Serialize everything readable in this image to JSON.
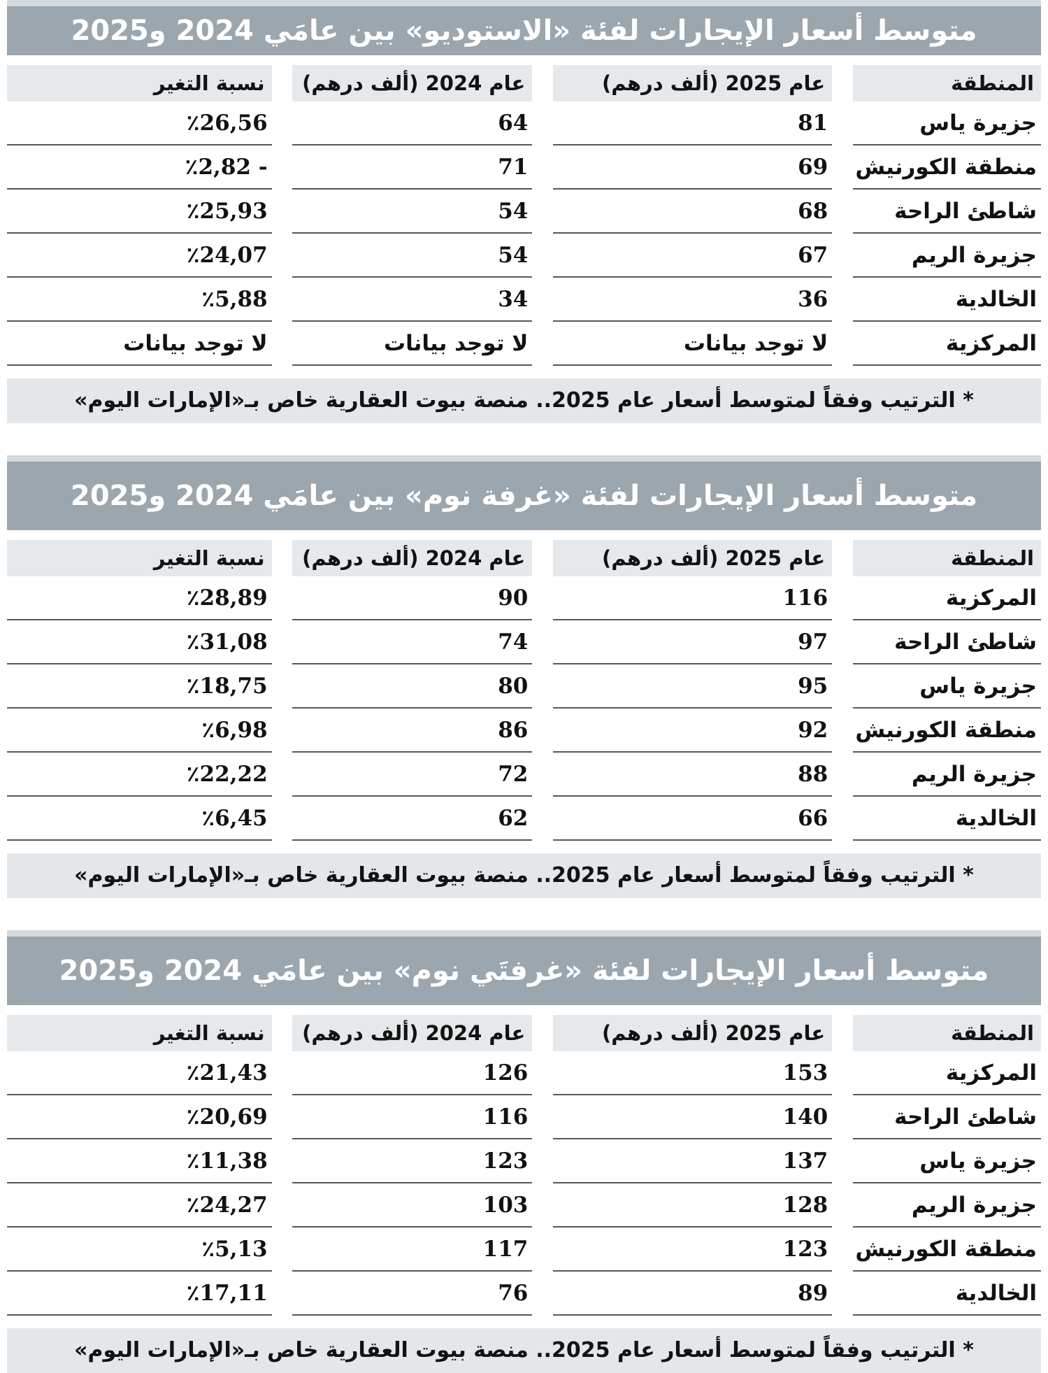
{
  "colors": {
    "title_bar": "#9ba6af",
    "title_strip": "#d3d9dd",
    "header_bg": "#e6e9eb",
    "footnote_bg": "#e3e7ea",
    "row_line": "#53585c",
    "text": "#121212",
    "title_text": "#ffffff"
  },
  "chart_data": [
    {
      "type": "table",
      "title": "متوسط أسعار الإيجارات لفئة «الاستوديو» بين عامَي 2024 و2025",
      "columns": [
        "المنطقة",
        "عام 2025 (ألف درهم)",
        "عام 2024 (ألف درهم)",
        "نسبة التغير"
      ],
      "unit": "ألف درهم",
      "rows": [
        {
          "region": "جزيرة ياس",
          "y2025": 81,
          "y2024": 64,
          "change_display": "٪26,56",
          "change_pct": 26.56
        },
        {
          "region": "منطقة الكورنيش",
          "y2025": 69,
          "y2024": 71,
          "change_display": "٪2,82 -",
          "change_pct": -2.82
        },
        {
          "region": "شاطئ الراحة",
          "y2025": 68,
          "y2024": 54,
          "change_display": "٪25,93",
          "change_pct": 25.93
        },
        {
          "region": "جزيرة الريم",
          "y2025": 67,
          "y2024": 54,
          "change_display": "٪24,07",
          "change_pct": 24.07
        },
        {
          "region": "الخالدية",
          "y2025": 36,
          "y2024": 34,
          "change_display": "٪5,88",
          "change_pct": 5.88
        },
        {
          "region": "المركزية",
          "y2025": "لا توجد بيانات",
          "y2024": "لا توجد بيانات",
          "change_display": "لا توجد بيانات",
          "change_pct": null
        }
      ],
      "footnote": "* الترتيب وفقاً لمتوسط أسعار عام 2025.. منصة بيوت العقارية خاص بـ«الإمارات اليوم»"
    },
    {
      "type": "table",
      "title": "متوسط أسعار الإيجارات لفئة «غرفة نوم» بين عامَي 2024 و2025",
      "columns": [
        "المنطقة",
        "عام 2025 (ألف درهم)",
        "عام 2024 (ألف درهم)",
        "نسبة التغير"
      ],
      "unit": "ألف درهم",
      "rows": [
        {
          "region": "المركزية",
          "y2025": 116,
          "y2024": 90,
          "change_display": "٪28,89",
          "change_pct": 28.89
        },
        {
          "region": "شاطئ الراحة",
          "y2025": 97,
          "y2024": 74,
          "change_display": "٪31,08",
          "change_pct": 31.08
        },
        {
          "region": "جزيرة ياس",
          "y2025": 95,
          "y2024": 80,
          "change_display": "٪18,75",
          "change_pct": 18.75
        },
        {
          "region": "منطقة الكورنيش",
          "y2025": 92,
          "y2024": 86,
          "change_display": "٪6,98",
          "change_pct": 6.98
        },
        {
          "region": "جزيرة الريم",
          "y2025": 88,
          "y2024": 72,
          "change_display": "٪22,22",
          "change_pct": 22.22
        },
        {
          "region": "الخالدية",
          "y2025": 66,
          "y2024": 62,
          "change_display": "٪6,45",
          "change_pct": 6.45
        }
      ],
      "footnote": "* الترتيب وفقاً لمتوسط أسعار عام 2025.. منصة بيوت العقارية خاص بـ«الإمارات اليوم»"
    },
    {
      "type": "table",
      "title": "متوسط أسعار الإيجارات لفئة «غرفتَي نوم» بين عامَي 2024 و2025",
      "columns": [
        "المنطقة",
        "عام 2025 (ألف درهم)",
        "عام 2024 (ألف درهم)",
        "نسبة التغير"
      ],
      "unit": "ألف درهم",
      "rows": [
        {
          "region": "المركزية",
          "y2025": 153,
          "y2024": 126,
          "change_display": "٪21,43",
          "change_pct": 21.43
        },
        {
          "region": "شاطئ الراحة",
          "y2025": 140,
          "y2024": 116,
          "change_display": "٪20,69",
          "change_pct": 20.69
        },
        {
          "region": "جزيرة ياس",
          "y2025": 137,
          "y2024": 123,
          "change_display": "٪11,38",
          "change_pct": 11.38
        },
        {
          "region": "جزيرة الريم",
          "y2025": 128,
          "y2024": 103,
          "change_display": "٪24,27",
          "change_pct": 24.27
        },
        {
          "region": "منطقة الكورنيش",
          "y2025": 123,
          "y2024": 117,
          "change_display": "٪5,13",
          "change_pct": 5.13
        },
        {
          "region": "الخالدية",
          "y2025": 89,
          "y2024": 76,
          "change_display": "٪17,11",
          "change_pct": 17.11
        }
      ],
      "footnote": "* الترتيب وفقاً لمتوسط أسعار عام 2025.. منصة بيوت العقارية خاص بـ«الإمارات اليوم»"
    }
  ]
}
